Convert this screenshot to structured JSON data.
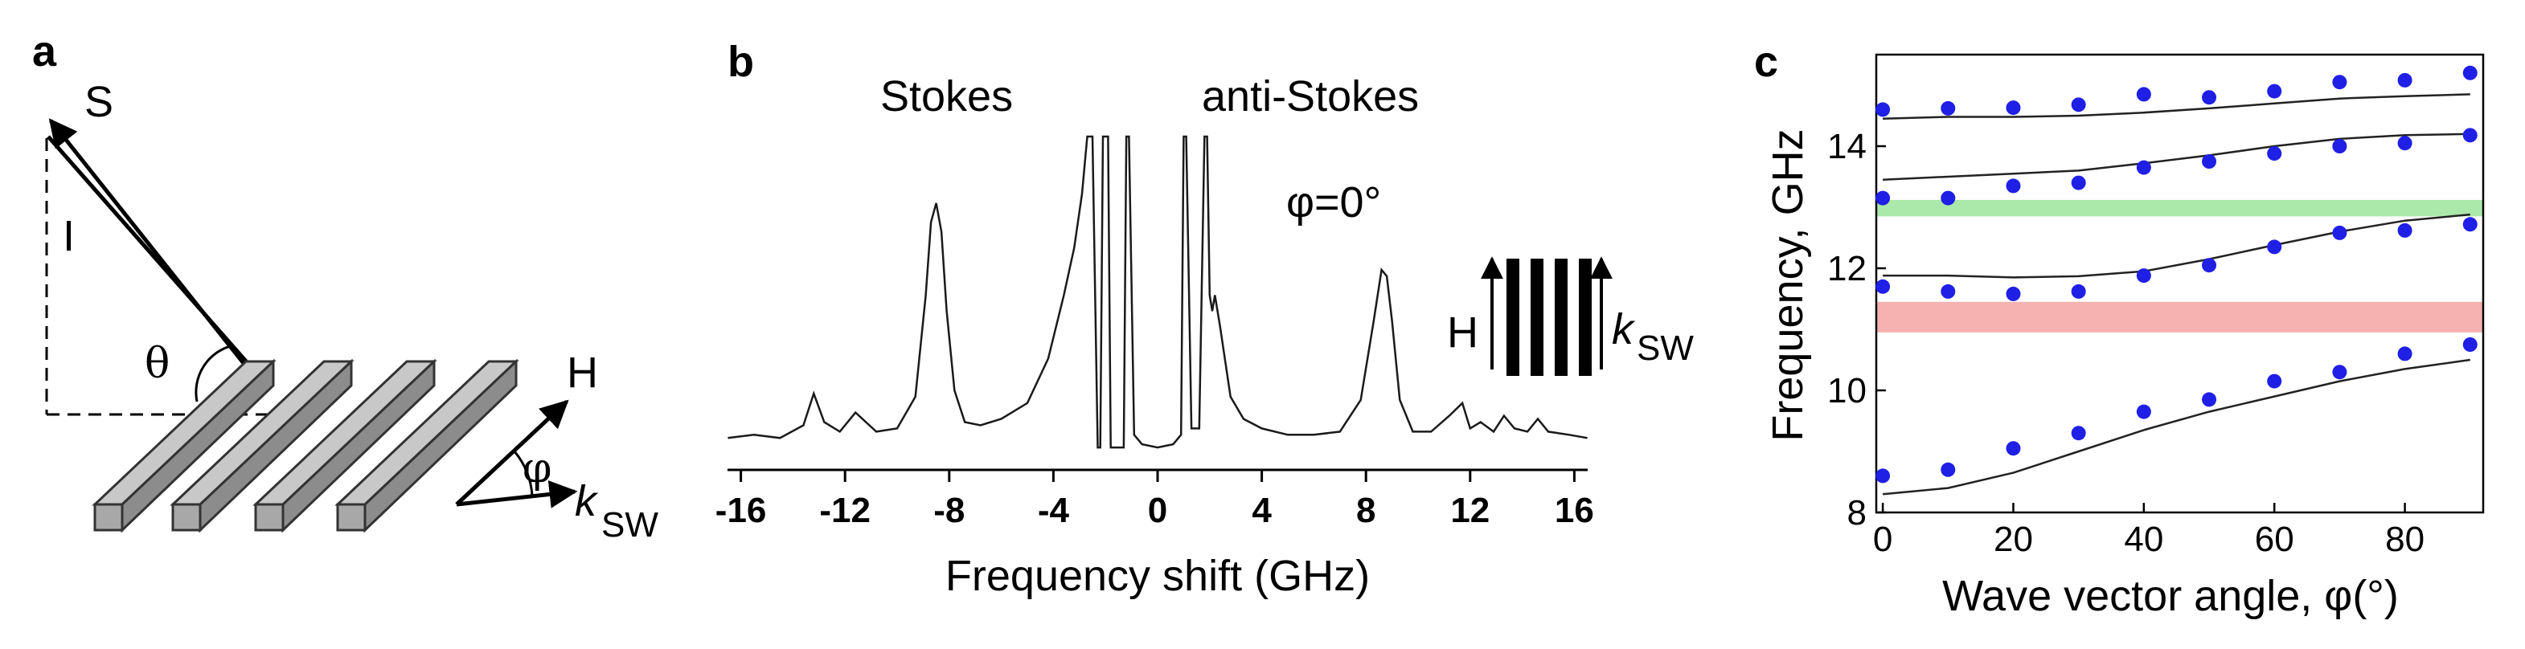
{
  "panels": {
    "a": {
      "label": "a",
      "beam_s": "S",
      "beam_i": "I",
      "angle_theta": "θ",
      "field_h": "H",
      "angle_phi": "φ",
      "wave_k": "k",
      "wave_k_sub": "SW"
    },
    "b": {
      "label": "b",
      "stokes": "Stokes",
      "anti_stokes": "anti-Stokes",
      "phi_note": "φ=0°",
      "inset_h": "H",
      "inset_k": "k",
      "inset_k_sub": "SW"
    },
    "c": {
      "label": "c",
      "band_green_color": "#9be59b",
      "band_red_color": "#f4a3a3",
      "dot_color": "#1f1fe6"
    }
  },
  "chart_data": [
    {
      "type": "line",
      "panel": "b",
      "title": "",
      "xlabel": "Frequency shift (GHz)",
      "ylabel": "",
      "xticks": [
        -16,
        -12,
        -8,
        -4,
        0,
        4,
        8,
        12,
        16
      ],
      "xlim": [
        -17,
        17
      ],
      "series": [
        {
          "x": [
            -16.5,
            -15.5,
            -14.5,
            -13.6,
            -13.2,
            -12.8,
            -12.2,
            -11.6,
            -10.8,
            -10,
            -9.3,
            -8.9,
            -8.7,
            -8.5,
            -8.3,
            -8.1,
            -7.8,
            -7.4,
            -6.8,
            -6,
            -5,
            -4.2,
            -3.6,
            -3.2,
            -2.9,
            -2.7,
            -2.5,
            -2.3,
            -2.2,
            -2.1,
            -1.9,
            -1.8,
            -1.3,
            -1.2,
            -1.1,
            -0.9,
            -0.6,
            0,
            0.6,
            0.9,
            1.0,
            1.1,
            1.3,
            1.6,
            1.8,
            1.9,
            2.0,
            2.1,
            2.2,
            2.4,
            2.8,
            3.3,
            4,
            5,
            6,
            7,
            7.8,
            8.3,
            8.6,
            8.8,
            9.0,
            9.3,
            9.8,
            10.5,
            11.2,
            11.7,
            12,
            12.4,
            12.9,
            13.3,
            13.7,
            14.2,
            14.6,
            15,
            15.8,
            16.5
          ],
          "y": [
            0.05,
            0.06,
            0.05,
            0.09,
            0.19,
            0.1,
            0.07,
            0.13,
            0.07,
            0.08,
            0.18,
            0.5,
            0.73,
            0.79,
            0.7,
            0.45,
            0.2,
            0.1,
            0.09,
            0.11,
            0.16,
            0.3,
            0.5,
            0.65,
            0.82,
            1.0,
            1.0,
            0.02,
            0.02,
            1.0,
            1.0,
            0.02,
            0.02,
            1.0,
            1.0,
            0.06,
            0.03,
            0.02,
            0.03,
            0.06,
            1.0,
            1.0,
            0.08,
            0.08,
            1.0,
            1.0,
            0.5,
            0.45,
            0.5,
            0.4,
            0.18,
            0.11,
            0.08,
            0.06,
            0.06,
            0.07,
            0.17,
            0.42,
            0.58,
            0.56,
            0.42,
            0.17,
            0.07,
            0.07,
            0.12,
            0.16,
            0.08,
            0.1,
            0.07,
            0.12,
            0.08,
            0.07,
            0.11,
            0.07,
            0.06,
            0.05
          ]
        }
      ]
    },
    {
      "type": "scatter",
      "panel": "c",
      "title": "",
      "xlabel": "Wave vector angle, φ(°)",
      "ylabel": "Frequency, GHz",
      "xlim": [
        -1,
        92
      ],
      "ylim": [
        8,
        15.5
      ],
      "xticks": [
        0,
        20,
        40,
        60,
        80
      ],
      "yticks": [
        8,
        10,
        12,
        14
      ],
      "bands": [
        {
          "name": "",
          "y": [
            12.85,
            13.12
          ],
          "color": "#9be59b"
        },
        {
          "name": "",
          "y": [
            10.95,
            11.45
          ],
          "color": "#f4a3a3"
        }
      ],
      "series": [
        {
          "name": "",
          "kind": "points",
          "x": [
            0,
            10,
            20,
            30,
            40,
            50,
            60,
            70,
            80,
            90
          ],
          "y": [
            14.6,
            14.62,
            14.63,
            14.68,
            14.85,
            14.8,
            14.9,
            15.05,
            15.08,
            15.2
          ]
        },
        {
          "name": "",
          "kind": "points",
          "x": [
            0,
            10,
            20,
            30,
            40,
            50,
            60,
            70,
            80,
            90
          ],
          "y": [
            13.15,
            13.15,
            13.35,
            13.4,
            13.65,
            13.75,
            13.88,
            14.0,
            14.05,
            14.18
          ]
        },
        {
          "name": "",
          "kind": "points",
          "x": [
            0,
            10,
            20,
            30,
            40,
            50,
            60,
            70,
            80,
            90
          ],
          "y": [
            11.7,
            11.62,
            11.58,
            11.62,
            11.88,
            12.05,
            12.35,
            12.58,
            12.62,
            12.72
          ]
        },
        {
          "name": "",
          "kind": "points",
          "x": [
            0,
            10,
            20,
            30,
            40,
            50,
            60,
            70,
            80,
            90
          ],
          "y": [
            8.6,
            8.7,
            9.05,
            9.3,
            9.65,
            9.85,
            10.15,
            10.3,
            10.6,
            10.75
          ]
        },
        {
          "name": "",
          "kind": "line",
          "x": [
            0,
            10,
            20,
            30,
            40,
            50,
            60,
            70,
            80,
            90
          ],
          "y": [
            14.45,
            14.48,
            14.48,
            14.5,
            14.55,
            14.62,
            14.7,
            14.78,
            14.82,
            14.85
          ]
        },
        {
          "name": "",
          "kind": "line",
          "x": [
            0,
            10,
            20,
            30,
            40,
            50,
            60,
            70,
            80,
            90
          ],
          "y": [
            13.45,
            13.5,
            13.55,
            13.6,
            13.72,
            13.85,
            14.0,
            14.12,
            14.18,
            14.2
          ]
        },
        {
          "name": "",
          "kind": "line",
          "x": [
            0,
            10,
            20,
            30,
            40,
            50,
            60,
            70,
            80,
            90
          ],
          "y": [
            11.88,
            11.88,
            11.85,
            11.87,
            11.95,
            12.15,
            12.38,
            12.6,
            12.78,
            12.88
          ]
        },
        {
          "name": "",
          "kind": "line",
          "x": [
            0,
            10,
            20,
            30,
            40,
            50,
            60,
            70,
            80,
            90
          ],
          "y": [
            8.3,
            8.4,
            8.65,
            9.0,
            9.35,
            9.65,
            9.9,
            10.15,
            10.35,
            10.5
          ]
        }
      ]
    }
  ]
}
